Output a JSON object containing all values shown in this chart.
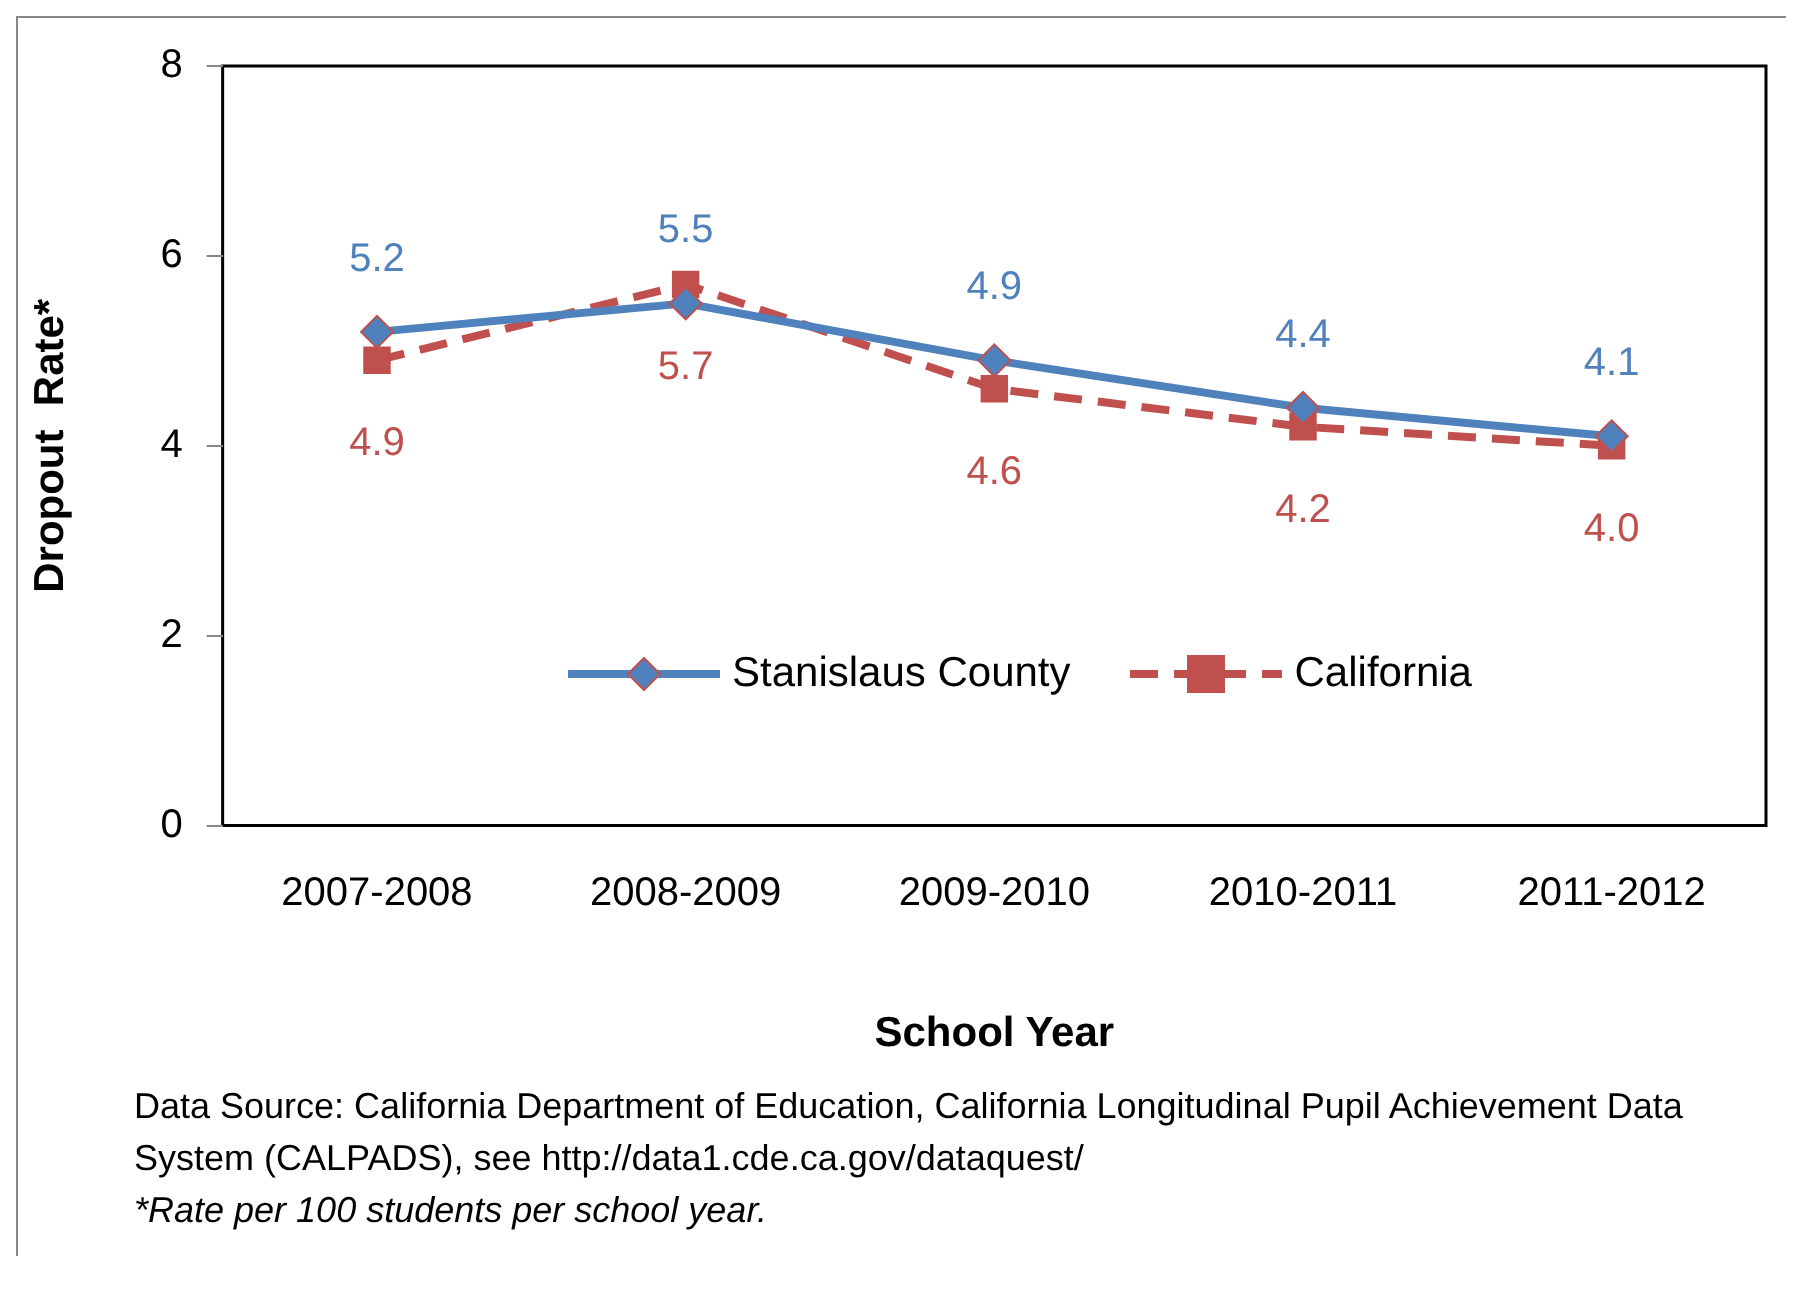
{
  "chart_data": {
    "type": "line",
    "xlabel": "School Year",
    "ylabel": "Dropout  Rate*",
    "categories": [
      "2007-2008",
      "2008-2009",
      "2009-2010",
      "2010-2011",
      "2011-2012"
    ],
    "series": [
      {
        "name": "Stanislaus County",
        "color": "#4f81bd",
        "values": [
          5.2,
          5.5,
          4.9,
          4.4,
          4.1
        ],
        "value_labels": [
          "5.2",
          "5.5",
          "4.9",
          "4.4",
          "4.1"
        ],
        "marker": "diamond",
        "line_style": "solid"
      },
      {
        "name": "California",
        "color": "#c0504d",
        "values": [
          4.9,
          5.7,
          4.6,
          4.2,
          4.0
        ],
        "value_labels": [
          "4.9",
          "5.7",
          "4.6",
          "4.2",
          "4.0"
        ],
        "marker": "square",
        "line_style": "dashed"
      }
    ],
    "ylim": [
      0,
      8
    ],
    "yticks": [
      0,
      2,
      4,
      6,
      8
    ],
    "grid": false,
    "legend": "bottom",
    "annotations": [
      "Data Source: California Department of Education, California Longitudinal Pupil Achievement Data System (CALPADS), see http://data1.cde.ca.gov/dataquest/",
      "*Rate per 100 students per school year."
    ]
  }
}
